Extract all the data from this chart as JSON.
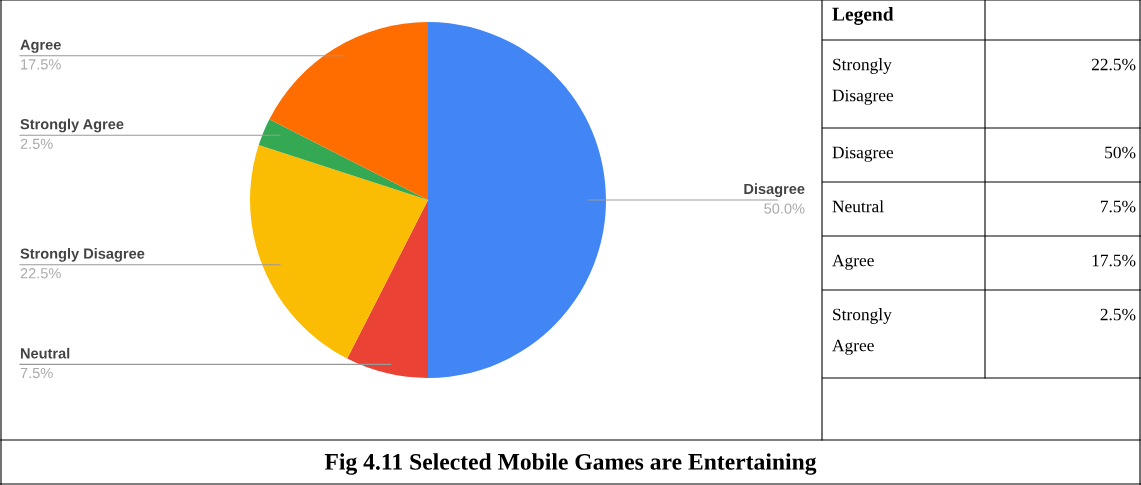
{
  "chart_data": [
    {
      "type": "pie",
      "title": "Fig 4.11 Selected Mobile Games are Entertaining",
      "categories": [
        "Disagree",
        "Neutral",
        "Strongly Disagree",
        "Strongly Agree",
        "Agree"
      ],
      "values": [
        50.0,
        7.5,
        22.5,
        2.5,
        17.5
      ],
      "value_labels": [
        "50.0%",
        "7.5%",
        "22.5%",
        "2.5%",
        "17.5%"
      ],
      "colors": [
        "#4285f4",
        "#ea4335",
        "#fbbc04",
        "#34a853",
        "#ff6d01"
      ]
    },
    {
      "type": "other",
      "title": "Legend",
      "categories": [
        "Strongly Disagree",
        "Disagree",
        "Neutral",
        "Agree",
        "Strongly Agree"
      ],
      "value_labels": [
        "22.5%",
        "50%",
        "7.5%",
        "17.5%",
        "2.5%"
      ]
    }
  ]
}
